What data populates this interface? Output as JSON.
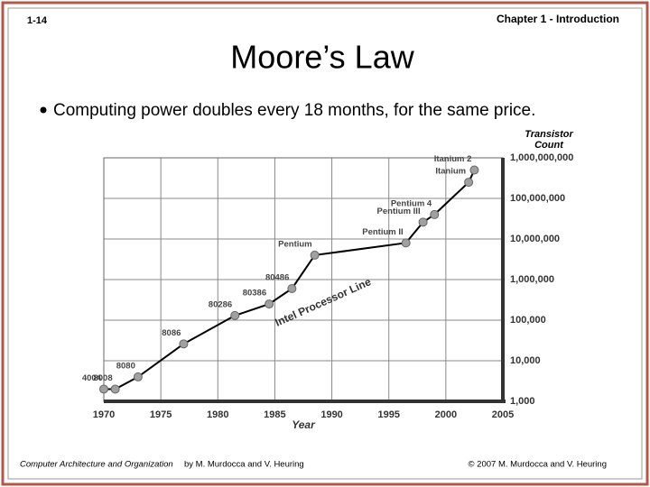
{
  "header": {
    "slide_number": "1-14",
    "chapter": "Chapter 1 - Introduction"
  },
  "title": "Moore’s Law",
  "bullets": [
    "Computing power doubles every 18 months, for the same price."
  ],
  "chart_data": {
    "type": "line",
    "xlabel": "Year",
    "ylabel": "Transistor Count",
    "annotation": "Intel Processor Line",
    "log_scale_y": true,
    "grid": true,
    "color": "#000000",
    "marker_color": "#a0a0a0",
    "x": [
      1970,
      1971,
      1973,
      1977,
      1981.5,
      1984.5,
      1986.5,
      1988.5,
      1996.5,
      1998,
      1999,
      2002,
      2002.5
    ],
    "values": [
      2000,
      2000,
      4000,
      26000,
      130000,
      250000,
      600000,
      4000000,
      8000000,
      26000000,
      40000000,
      250000000,
      500000000
    ],
    "point_labels": [
      "4004",
      "8008",
      "8080",
      "8086",
      "80286",
      "80386",
      "80486",
      "Pentium",
      "Pentium II",
      "Pentium III",
      "Pentium 4",
      "Itanium",
      "Itanium 2"
    ],
    "xlim": [
      1970,
      2005
    ],
    "xticks": [
      1970,
      1975,
      1980,
      1985,
      1990,
      1995,
      2000,
      2005
    ],
    "ylim": [
      1000,
      1000000000
    ],
    "yticks": [
      {
        "value": 1000,
        "label": "1,000"
      },
      {
        "value": 10000,
        "label": "10,000"
      },
      {
        "value": 100000,
        "label": "100,000"
      },
      {
        "value": 1000000,
        "label": "1,000,000"
      },
      {
        "value": 10000000,
        "label": "10,000,000"
      },
      {
        "value": 100000000,
        "label": "100,000,000"
      },
      {
        "value": 1000000000,
        "label": "1,000,000,000"
      }
    ]
  },
  "footer": {
    "book_title": "Computer Architecture and Organization",
    "authors": "by M. Murdocca and V. Heuring",
    "copyright": "© 2007 M. Murdocca and V. Heuring"
  }
}
